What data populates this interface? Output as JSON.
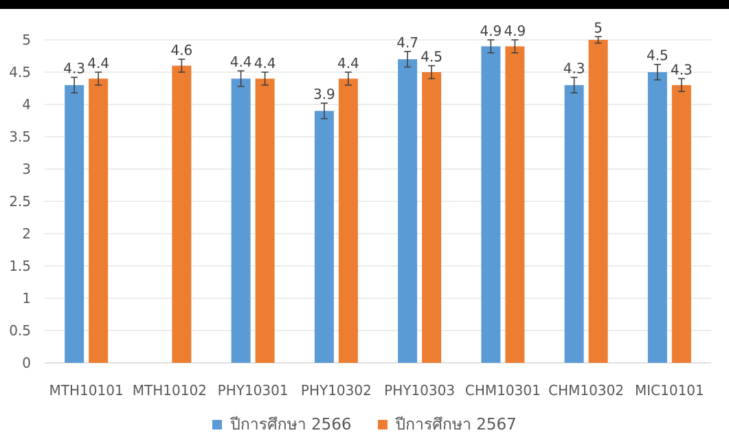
{
  "chart_data": {
    "type": "bar",
    "title": "",
    "xlabel": "",
    "ylabel": "",
    "ylim": [
      0,
      5
    ],
    "yticks": [
      "0",
      "0.5",
      "1",
      "1.5",
      "2",
      "2.5",
      "3",
      "3.5",
      "4",
      "4.5",
      "5"
    ],
    "grid": true,
    "legend_position": "bottom",
    "error_bars": true,
    "categories": [
      "MTH10101",
      "MTH10102",
      "PHY10301",
      "PHY10302",
      "PHY10303",
      "CHM10301",
      "CHM10302",
      "MIC10101"
    ],
    "series": [
      {
        "name": "ปีการศึกษา 2566",
        "color": "#5B9BD5",
        "values": [
          4.3,
          null,
          4.4,
          3.9,
          4.7,
          4.9,
          4.3,
          4.5
        ],
        "labels": [
          "4.3",
          "",
          "4.4",
          "3.9",
          "4.7",
          "4.9",
          "4.3",
          "4.5"
        ],
        "errors": [
          0.12,
          null,
          0.12,
          0.12,
          0.12,
          0.1,
          0.12,
          0.12
        ]
      },
      {
        "name": "ปีการศึกษา 2567",
        "color": "#ED7D31",
        "values": [
          4.4,
          4.6,
          4.4,
          4.4,
          4.5,
          4.9,
          5,
          4.3
        ],
        "labels": [
          "4.4",
          "4.6",
          "4.4",
          "4.4",
          "4.5",
          "4.9",
          "5",
          "4.3"
        ],
        "errors": [
          0.1,
          0.1,
          0.1,
          0.1,
          0.1,
          0.1,
          0.05,
          0.1
        ]
      }
    ]
  }
}
